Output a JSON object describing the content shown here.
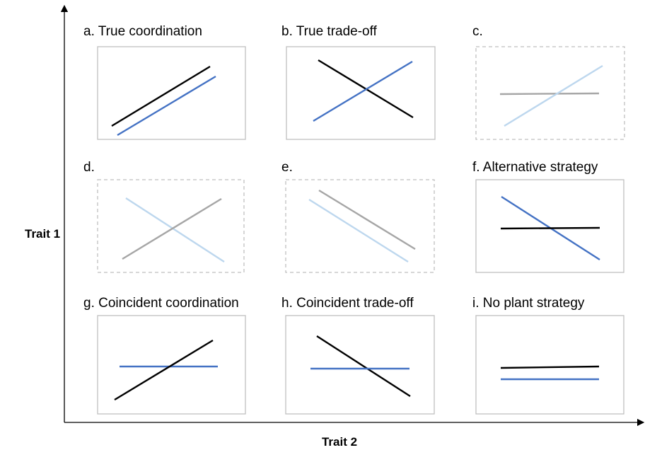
{
  "axes": {
    "y_label": "Trait 1",
    "x_label": "Trait 2"
  },
  "panels": [
    {
      "title": "a. True coordination"
    },
    {
      "title": "b. True trade-off"
    },
    {
      "title": "c."
    },
    {
      "title": "d."
    },
    {
      "title": "e."
    },
    {
      "title": "f. Alternative strategy"
    },
    {
      "title": "g. Coincident coordination"
    },
    {
      "title": "h. Coincident trade-off"
    },
    {
      "title": "i. No plant strategy"
    }
  ]
}
